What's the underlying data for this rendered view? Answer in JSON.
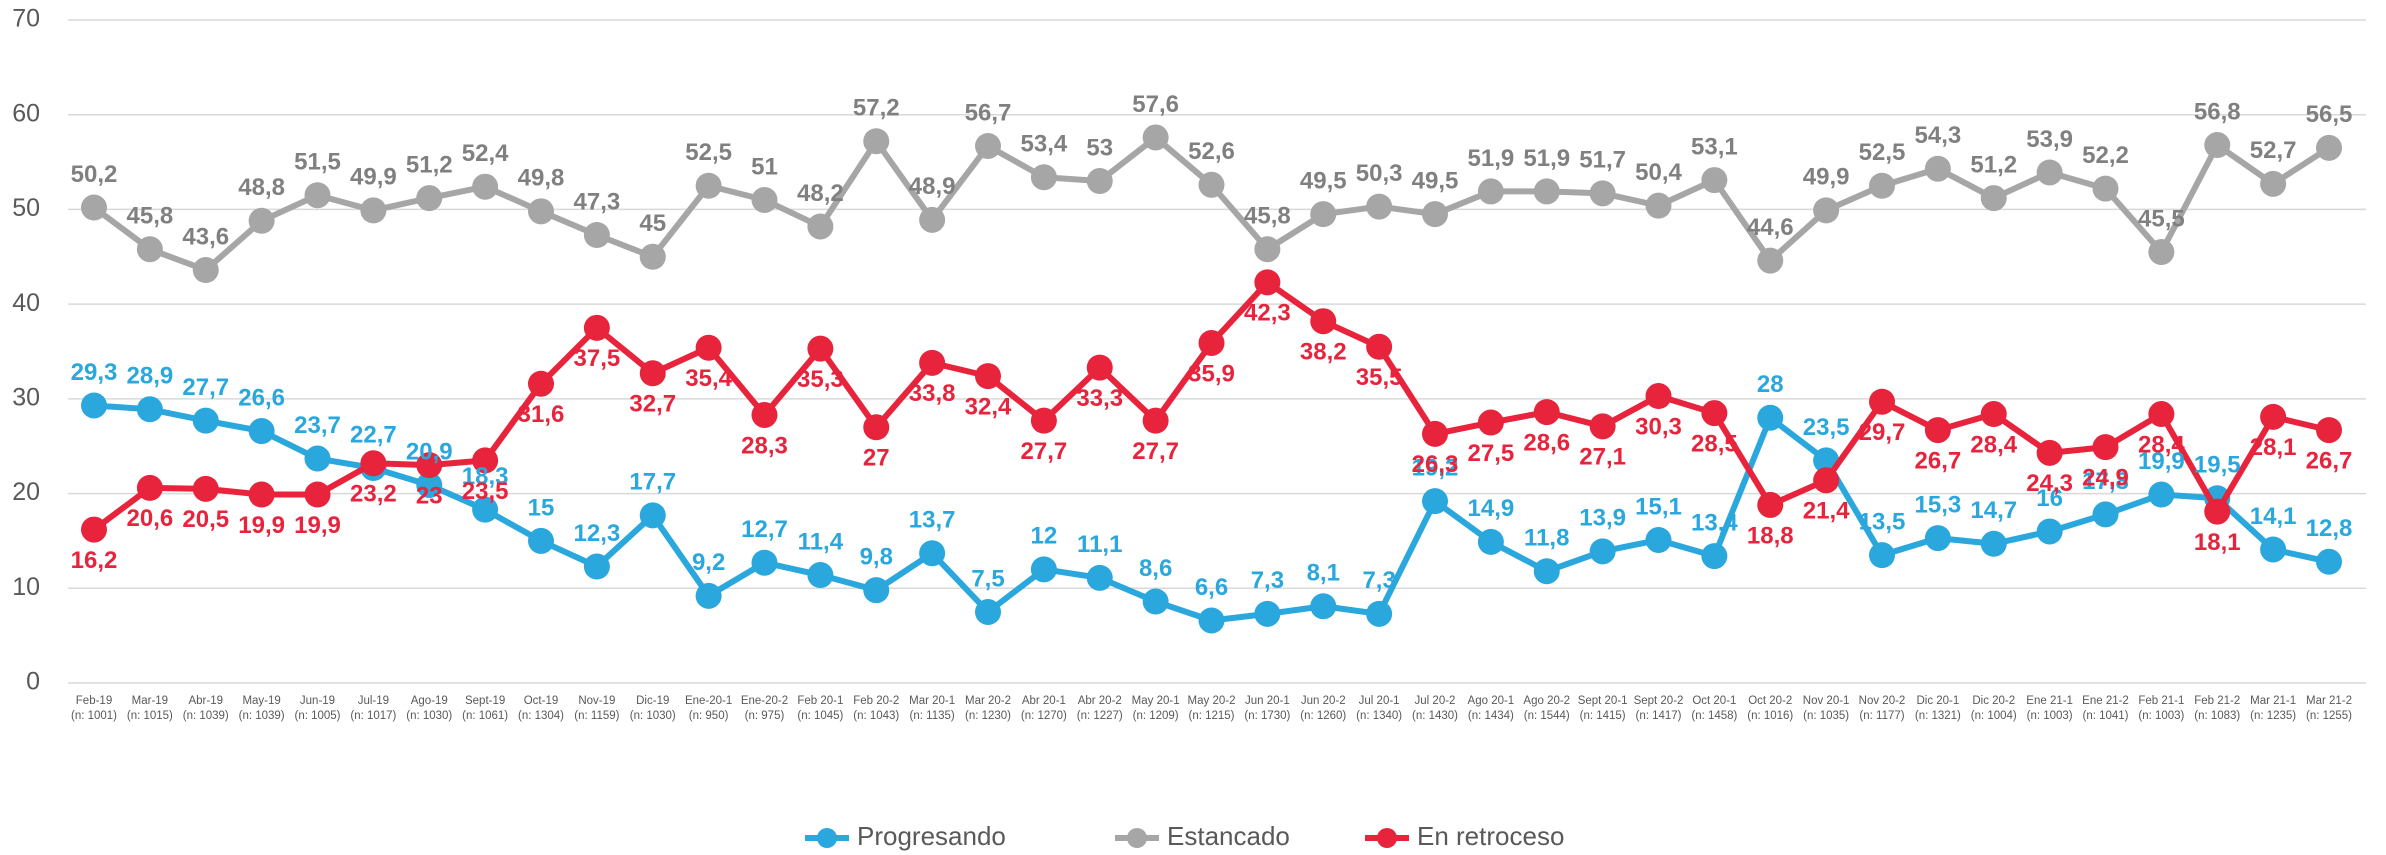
{
  "chart_data": {
    "type": "line",
    "categories": [
      "Feb-19\n(n: 1001)",
      "Mar-19\n(n: 1015)",
      "Abr-19\n(n: 1039)",
      "May-19\n(n: 1039)",
      "Jun-19\n(n: 1005)",
      "Jul-19\n(n: 1017)",
      "Ago-19\n(n: 1030)",
      "Sept-19\n(n: 1061)",
      "Oct-19\n(n: 1304)",
      "Nov-19\n(n: 1159)",
      "Dic-19\n(n: 1030)",
      "Ene-20-1\n(n: 950)",
      "Ene-20-2\n(n: 975)",
      "Feb 20-1\n(n: 1045)",
      "Feb 20-2\n(n: 1043)",
      "Mar 20-1\n(n: 1135)",
      "Mar 20-2\n(n: 1230)",
      "Abr 20-1\n(n: 1270)",
      "Abr 20-2\n(n: 1227)",
      "May 20-1\n(n: 1209)",
      "May 20-2\n(n: 1215)",
      "Jun 20-1\n(n: 1730)",
      "Jun 20-2\n(n: 1260)",
      "Jul 20-1\n(n: 1340)",
      "Jul 20-2\n(n: 1430)",
      "Ago 20-1\n(n: 1434)",
      "Ago 20-2\n(n: 1544)",
      "Sept 20-1\n(n: 1415)",
      "Sept 20-2\n(n: 1417)",
      "Oct 20-1\n(n: 1458)",
      "Oct 20-2\n(n: 1016)",
      "Nov 20-1\n(n: 1035)",
      "Nov 20-2\n(n: 1177)",
      "Dic 20-1\n(n: 1321)",
      "Dic 20-2\n(n: 1004)",
      "Ene 21-1\n(n: 1003)",
      "Ene 21-2\n(n: 1041)",
      "Feb 21-1\n(n: 1003)",
      "Feb 21-2\n(n: 1083)",
      "Mar 21-1\n(n: 1235)",
      "Mar 21-2\n(n: 1255)"
    ],
    "series": [
      {
        "name": "Progresando",
        "color": "#2aa7dd",
        "values": [
          29.3,
          28.9,
          27.7,
          26.6,
          23.7,
          22.7,
          20.9,
          18.3,
          15,
          12.3,
          17.7,
          9.2,
          12.7,
          11.4,
          9.8,
          13.7,
          7.5,
          12,
          11.1,
          8.6,
          6.6,
          7.3,
          8.1,
          7.3,
          19.2,
          14.9,
          11.8,
          13.9,
          15.1,
          13.4,
          28,
          23.5,
          13.5,
          15.3,
          14.7,
          16,
          17.8,
          19.9,
          19.5,
          14.1,
          12.8
        ],
        "value_labels": [
          "29,3",
          "28,9",
          "27,7",
          "26,6",
          "23,7",
          "22,7",
          "20,9",
          "18,3",
          "15",
          "12,3",
          "17,7",
          "9,2",
          "12,7",
          "11,4",
          "9,8",
          "13,7",
          "7,5",
          "12",
          "11,1",
          "8,6",
          "6,6",
          "7,3",
          "8,1",
          "7,3",
          "19,2",
          "14,9",
          "11,8",
          "13,9",
          "15,1",
          "13,4",
          "28",
          "23,5",
          "13,5",
          "15,3",
          "14,7",
          "16",
          "17,8",
          "19,9",
          "19,5",
          "14,1",
          "12,8"
        ]
      },
      {
        "name": "Estancado",
        "color": "#a6a6a6",
        "values": [
          50.2,
          45.8,
          43.6,
          48.8,
          51.5,
          49.9,
          51.2,
          52.4,
          49.8,
          47.3,
          45,
          52.5,
          51,
          48.2,
          57.2,
          48.9,
          56.7,
          53.4,
          53,
          57.6,
          52.6,
          45.8,
          49.5,
          50.3,
          49.5,
          51.9,
          51.9,
          51.7,
          50.4,
          53.1,
          44.6,
          49.9,
          52.5,
          54.3,
          51.2,
          53.9,
          52.2,
          45.5,
          56.8,
          52.7,
          56.5
        ],
        "value_labels": [
          "50,2",
          "45,8",
          "43,6",
          "48,8",
          "51,5",
          "49,9",
          "51,2",
          "52,4",
          "49,8",
          "47,3",
          "45",
          "52,5",
          "51",
          "48,2",
          "57,2",
          "48,9",
          "56,7",
          "53,4",
          "53",
          "57,6",
          "52,6",
          "45,8",
          "49,5",
          "50,3",
          "49,5",
          "51,9",
          "51,9",
          "51,7",
          "50,4",
          "53,1",
          "44,6",
          "49,9",
          "52,5",
          "54,3",
          "51,2",
          "53,9",
          "52,2",
          "45,5",
          "56,8",
          "52,7",
          "56,5"
        ]
      },
      {
        "name": "En retroceso",
        "color": "#e8233c",
        "values": [
          16.2,
          20.6,
          20.5,
          19.9,
          19.9,
          23.2,
          23,
          23.5,
          31.6,
          37.5,
          32.7,
          35.4,
          28.3,
          35.3,
          27,
          33.8,
          32.4,
          27.7,
          33.3,
          27.7,
          35.9,
          42.3,
          38.2,
          35.5,
          26.3,
          27.5,
          28.6,
          27.1,
          30.3,
          28.5,
          18.8,
          21.4,
          29.7,
          26.7,
          28.4,
          24.3,
          24.9,
          28.4,
          18.1,
          28.1,
          26.7
        ],
        "value_labels": [
          "16,2",
          "20,6",
          "20,5",
          "19,9",
          "19,9",
          "23,2",
          "23",
          "23,5",
          "31,6",
          "37,5",
          "32,7",
          "35,4",
          "28,3",
          "35,3",
          "27",
          "33,8",
          "32,4",
          "27,7",
          "33,3",
          "27,7",
          "35,9",
          "42,3",
          "38,2",
          "35,5",
          "26,3",
          "27,5",
          "28,6",
          "27,1",
          "30,3",
          "28,5",
          "18,8",
          "21,4",
          "29,7",
          "26,7",
          "28,4",
          "24,3",
          "24,9",
          "28,4",
          "18,1",
          "28,1",
          "26,7"
        ]
      }
    ],
    "ylim": [
      0,
      70
    ],
    "yticks": [
      0,
      10,
      20,
      30,
      40,
      50,
      60,
      70
    ],
    "grid": true,
    "legend": "bottom"
  }
}
